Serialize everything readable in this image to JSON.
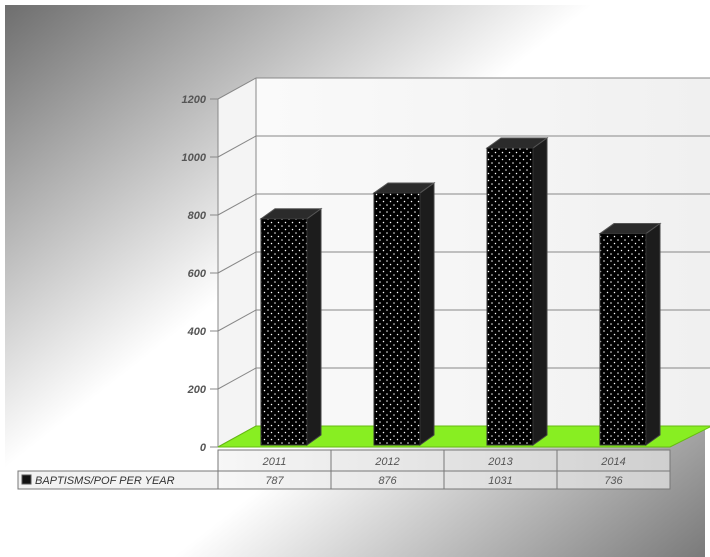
{
  "chart_data": {
    "type": "bar",
    "title": "",
    "xlabel": "",
    "ylabel": "",
    "categories": [
      "2011",
      "2012",
      "2013",
      "2014"
    ],
    "series": [
      {
        "name": "BAPTISMS/POF PER YEAR",
        "values": [
          787,
          876,
          1031,
          736
        ]
      }
    ],
    "ylim": [
      0,
      1200
    ],
    "yticks": [
      "0",
      "200",
      "400",
      "600",
      "800",
      "1000",
      "1200"
    ],
    "data_table": [
      [
        "787",
        "876",
        "1031",
        "736"
      ]
    ],
    "grid": true,
    "legend": "data-table-left",
    "colors": {
      "bar_front": "#000000",
      "bar_dots": "#ffffff",
      "bar_side": "#1c1c1c",
      "bar_top": "#2b2b2b",
      "floor": "#88ee22",
      "grid": "#888888"
    }
  }
}
